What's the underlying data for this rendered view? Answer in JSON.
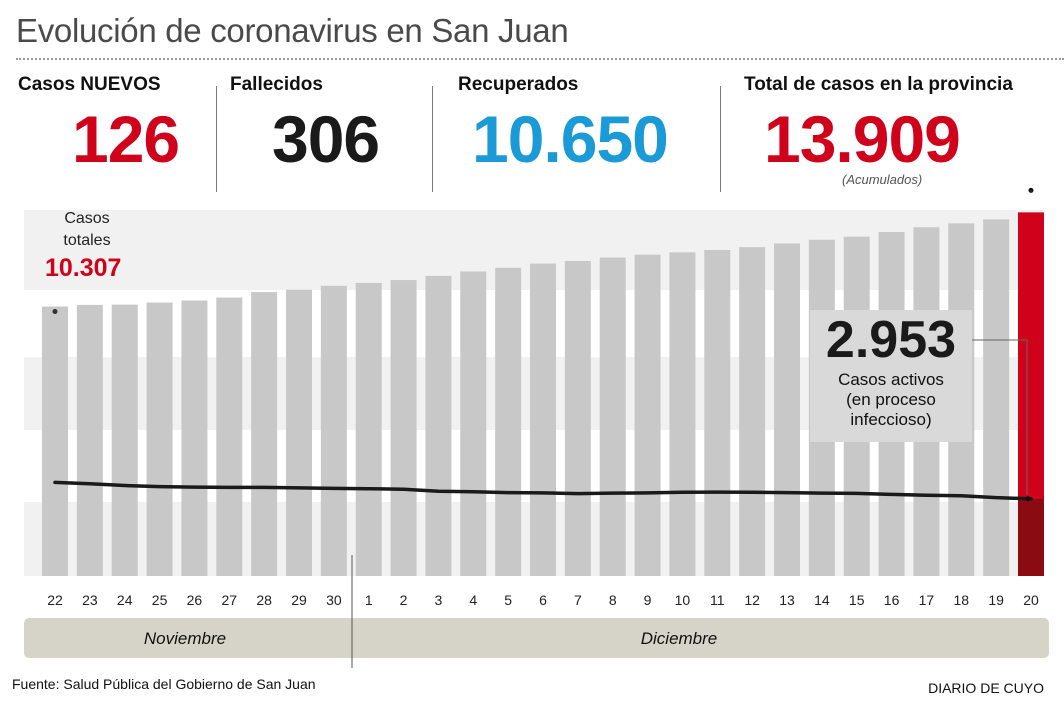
{
  "title": "Evolución de coronavirus en San Juan",
  "stats": {
    "new_cases": {
      "label": "Casos NUEVOS",
      "value": "126",
      "color": "#d0021b"
    },
    "deaths": {
      "label": "Fallecidos",
      "value": "306",
      "color": "#1a1a1a"
    },
    "recovered": {
      "label": "Recuperados",
      "value": "10.650",
      "color": "#1a9ad6"
    },
    "total": {
      "label": "Total de casos en la provincia",
      "value": "13.909",
      "note": "(Acumulados)",
      "color": "#d0021b"
    }
  },
  "chart_data": {
    "type": "bar",
    "categories": [
      "22",
      "23",
      "24",
      "25",
      "26",
      "27",
      "28",
      "29",
      "30",
      "1",
      "2",
      "3",
      "4",
      "5",
      "6",
      "7",
      "8",
      "9",
      "10",
      "11",
      "12",
      "13",
      "14",
      "15",
      "16",
      "17",
      "18",
      "19",
      "20"
    ],
    "months": [
      {
        "label": "Noviembre",
        "start": "22",
        "end": "30"
      },
      {
        "label": "Diciembre",
        "start": "1",
        "end": "20"
      }
    ],
    "series": [
      {
        "values": [
          10307,
          10370,
          10380,
          10460,
          10540,
          10650,
          10860,
          10950,
          11100,
          11210,
          11320,
          11480,
          11650,
          11790,
          11950,
          12050,
          12180,
          12290,
          12380,
          12470,
          12580,
          12720,
          12860,
          12980,
          13160,
          13340,
          13490,
          13640,
          13909
        ],
        "color": "#c8c8c8",
        "highlight_last_color": "#d0021b"
      },
      {
        "values": [
          3580,
          3530,
          3460,
          3420,
          3400,
          3390,
          3390,
          3370,
          3350,
          3340,
          3320,
          3240,
          3220,
          3190,
          3180,
          3150,
          3170,
          3180,
          3200,
          3210,
          3200,
          3190,
          3170,
          3160,
          3120,
          3090,
          3070,
          3000,
          2953
        ],
        "color": "#1a1a1a",
        "highlight_last_color": "#8b0b12"
      }
    ],
    "ylim": [
      0,
      14000
    ],
    "callouts": {
      "start": {
        "label_line1": "Casos",
        "label_line2": "totales",
        "value": "10.307"
      },
      "active": {
        "value": "2.953",
        "line1": "Casos activos",
        "line2": "(en proceso",
        "line3": "infeccioso)"
      }
    }
  },
  "footer": {
    "source": "Fuente: Salud Pública del Gobierno de San Juan",
    "brand": "DIARIO DE CUYO"
  }
}
